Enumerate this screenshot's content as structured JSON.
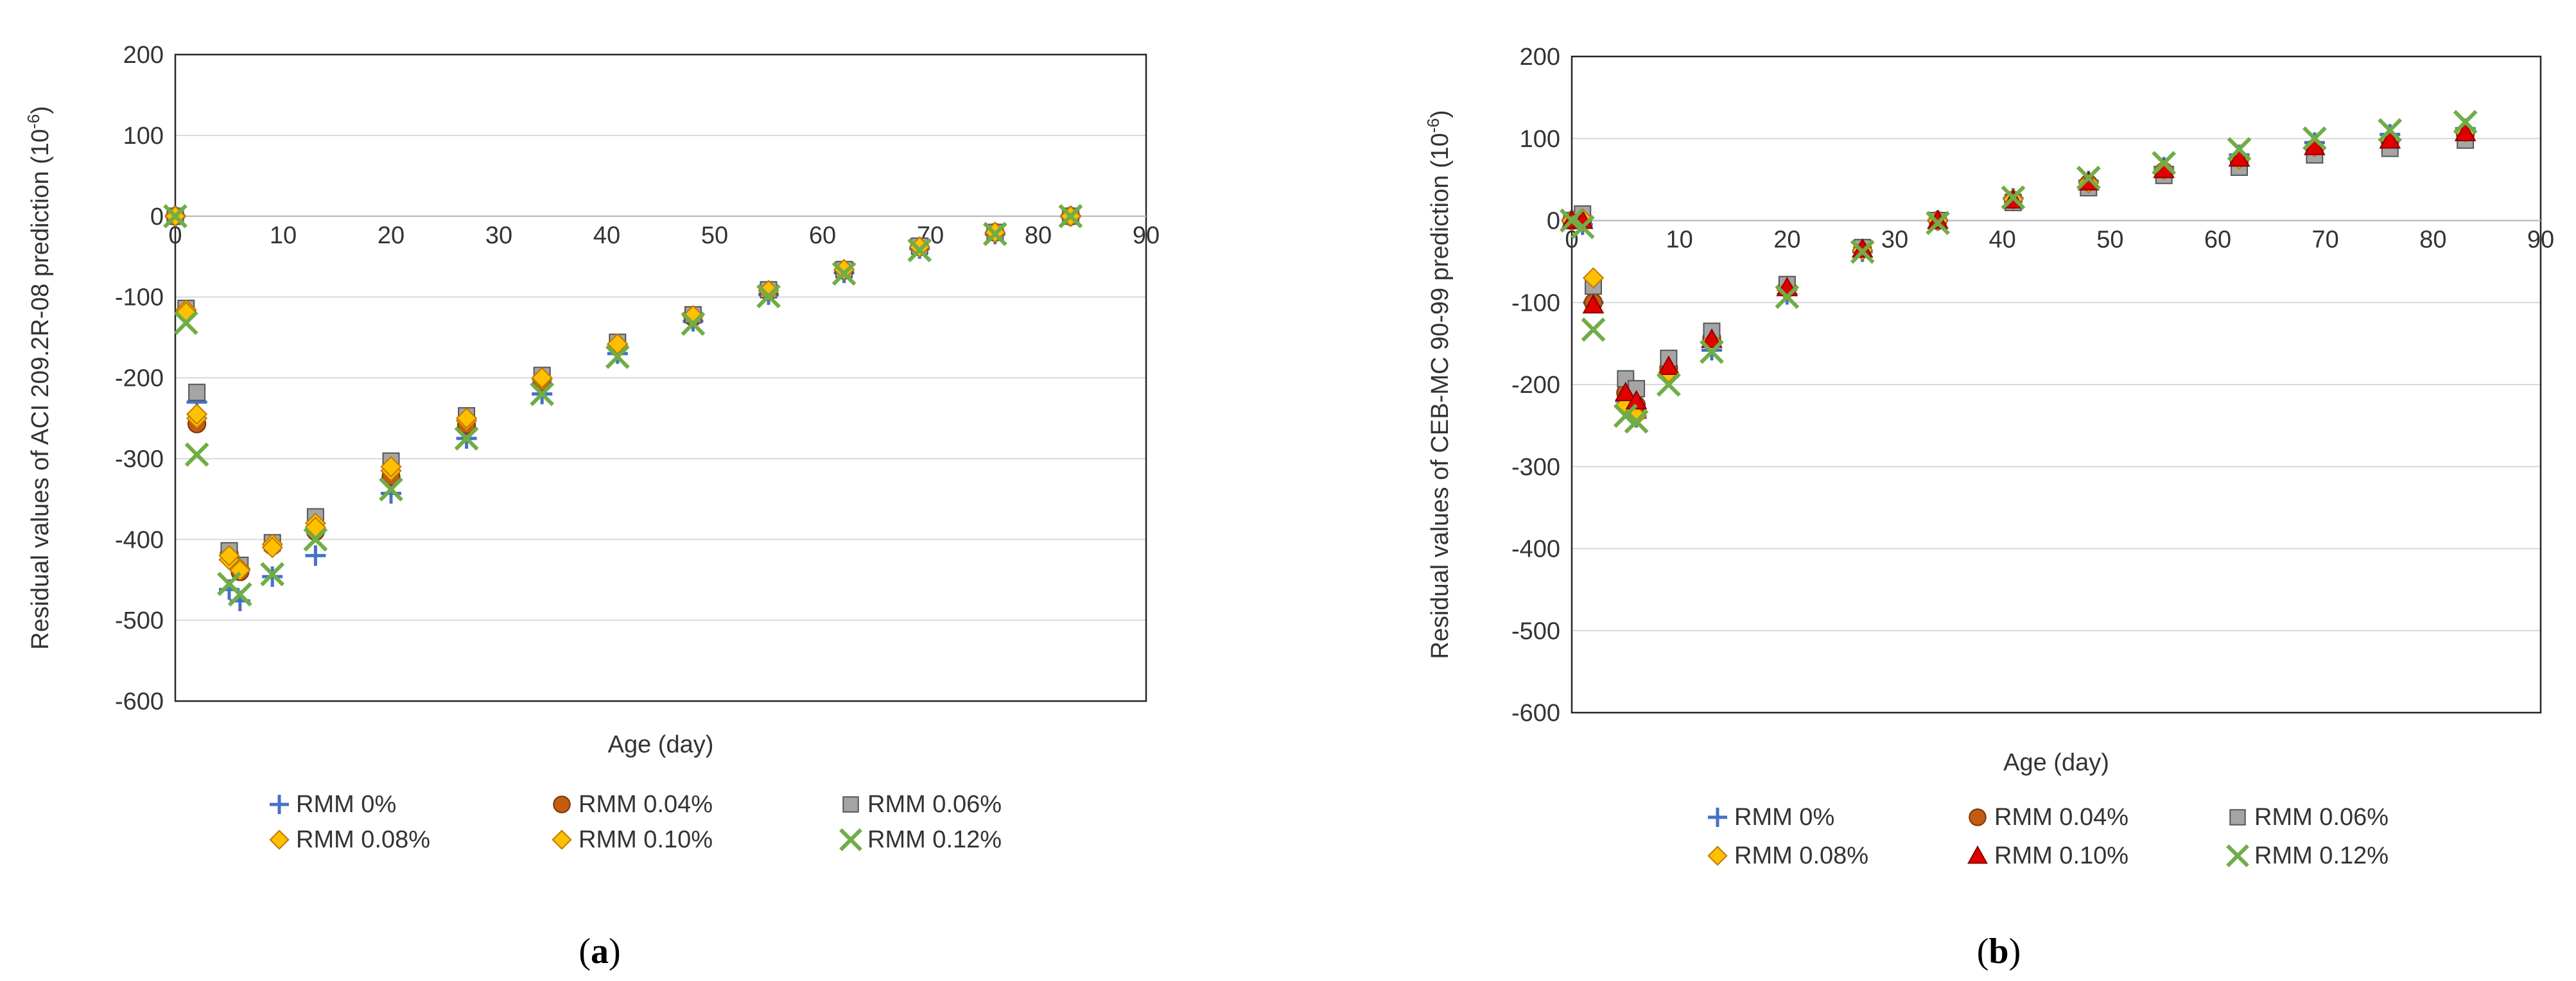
{
  "colors": {
    "RMM 0%": "#4472C4",
    "RMM 0.04%": "#C55A11",
    "RMM 0.06%": "#A5A5A5",
    "RMM 0.08%": "#FFC000",
    "RMM 0.10%": "#FFC000",
    "RMM 0.12%": "#70AD47",
    "red": "#E00000"
  },
  "chart_data": [
    {
      "type": "scatter",
      "caption_letter": "a",
      "xlabel": "Age (day)",
      "ylabel": "Residual values of ACI 209.2R-08  prediction (10",
      "ylabel_sup": "-6",
      "ylabel_end": ")",
      "xlim": [
        0,
        90
      ],
      "ylim": [
        -600,
        200
      ],
      "xticks": [
        0,
        10,
        20,
        30,
        40,
        50,
        60,
        70,
        80,
        90
      ],
      "yticks": [
        200,
        100,
        0,
        -100,
        -200,
        -300,
        -400,
        -500,
        -600
      ],
      "series": [
        {
          "name": "RMM 0%",
          "marker": "plus",
          "color": "#4472C4",
          "x": [
            0,
            1,
            2,
            5,
            6,
            9,
            13,
            20,
            27,
            34,
            41,
            48,
            55,
            62,
            69,
            76,
            83
          ],
          "y": [
            0,
            -118,
            -230,
            -462,
            -476,
            -446,
            -420,
            -343,
            -275,
            -220,
            -170,
            -130,
            -97,
            -70,
            -40,
            -22,
            0
          ]
        },
        {
          "name": "RMM 0.04%",
          "marker": "circle",
          "color": "#C55A11",
          "x": [
            0,
            1,
            2,
            5,
            6,
            9,
            13,
            20,
            27,
            34,
            41,
            48,
            55,
            62,
            69,
            76,
            83
          ],
          "y": [
            0,
            -117,
            -257,
            -418,
            -440,
            -408,
            -390,
            -322,
            -258,
            -205,
            -160,
            -125,
            -93,
            -67,
            -38,
            -20,
            0
          ]
        },
        {
          "name": "RMM 0.06%",
          "marker": "square",
          "color": "#A5A5A5",
          "x": [
            0,
            1,
            2,
            5,
            6,
            9,
            13,
            20,
            27,
            34,
            41,
            48,
            55,
            62,
            69,
            76,
            83
          ],
          "y": [
            0,
            -114,
            -218,
            -414,
            -432,
            -404,
            -372,
            -303,
            -247,
            -197,
            -156,
            -122,
            -91,
            -66,
            -37,
            -20,
            0
          ]
        },
        {
          "name": "RMM 0.08%",
          "marker": "diamond",
          "color": "#FFC000",
          "x": [
            0,
            1,
            2,
            5,
            6,
            9,
            13,
            20,
            27,
            34,
            41,
            48,
            55,
            62,
            69,
            76,
            83
          ],
          "y": [
            0,
            -116,
            -250,
            -425,
            -436,
            -406,
            -380,
            -315,
            -253,
            -202,
            -159,
            -124,
            -92,
            -66,
            -38,
            -20,
            0
          ]
        },
        {
          "name": "RMM 0.10%",
          "marker": "diamond",
          "color": "#FFC000",
          "x": [
            0,
            1,
            2,
            5,
            6,
            9,
            13,
            20,
            27,
            34,
            41,
            48,
            55,
            62,
            69,
            76,
            83
          ],
          "y": [
            0,
            -119,
            -245,
            -420,
            -438,
            -410,
            -385,
            -310,
            -250,
            -200,
            -158,
            -123,
            -92,
            -66,
            -38,
            -20,
            0
          ]
        },
        {
          "name": "RMM 0.12%",
          "marker": "x",
          "color": "#70AD47",
          "x": [
            0,
            1,
            2,
            5,
            6,
            9,
            13,
            20,
            27,
            34,
            41,
            48,
            55,
            62,
            69,
            76,
            83
          ],
          "y": [
            0,
            -132,
            -295,
            -455,
            -468,
            -443,
            -400,
            -338,
            -275,
            -220,
            -174,
            -133,
            -99,
            -71,
            -42,
            -22,
            0
          ]
        }
      ]
    },
    {
      "type": "scatter",
      "caption_letter": "b",
      "xlabel": "Age (day)",
      "ylabel": "Residual values of CEB-MC 90-99  prediction (10",
      "ylabel_sup": "-6",
      "ylabel_end": ")",
      "xlim": [
        0,
        90
      ],
      "ylim": [
        -600,
        200
      ],
      "xticks": [
        0,
        10,
        20,
        30,
        40,
        50,
        60,
        70,
        80,
        90
      ],
      "yticks": [
        200,
        100,
        0,
        -100,
        -200,
        -300,
        -400,
        -500,
        -600
      ],
      "series": [
        {
          "name": "RMM 0%",
          "marker": "plus",
          "color": "#4472C4",
          "x": [
            0,
            1,
            2,
            5,
            6,
            9,
            13,
            20,
            27,
            34,
            41,
            48,
            55,
            62,
            69,
            76,
            83
          ],
          "y": [
            0,
            -5,
            -100,
            -220,
            -240,
            -190,
            -158,
            -90,
            -38,
            0,
            27,
            48,
            65,
            80,
            95,
            105,
            112
          ]
        },
        {
          "name": "RMM 0.04%",
          "marker": "circle",
          "color": "#C55A11",
          "x": [
            0,
            1,
            2,
            5,
            6,
            9,
            13,
            20,
            27,
            34,
            41,
            48,
            55,
            62,
            69,
            76,
            83
          ],
          "y": [
            0,
            0,
            -100,
            -210,
            -225,
            -180,
            -143,
            -82,
            -35,
            0,
            25,
            45,
            60,
            72,
            88,
            97,
            105
          ]
        },
        {
          "name": "RMM 0.06%",
          "marker": "square",
          "color": "#A5A5A5",
          "x": [
            0,
            1,
            2,
            5,
            6,
            9,
            13,
            20,
            27,
            34,
            41,
            48,
            55,
            62,
            69,
            76,
            83
          ],
          "y": [
            0,
            8,
            -80,
            -193,
            -205,
            -168,
            -135,
            -78,
            -33,
            0,
            22,
            40,
            55,
            65,
            80,
            88,
            98
          ]
        },
        {
          "name": "RMM 0.08%",
          "marker": "diamond",
          "color": "#FFC000",
          "x": [
            0,
            1,
            2,
            5,
            6,
            9,
            13,
            20,
            27,
            34,
            41,
            48,
            55,
            62,
            69,
            76,
            83
          ],
          "y": [
            0,
            2,
            -70,
            -225,
            -238,
            -185,
            -148,
            -85,
            -36,
            0,
            26,
            46,
            62,
            75,
            90,
            100,
            108
          ]
        },
        {
          "name": "RMM 0.10%",
          "marker": "triangle",
          "color": "#E00000",
          "x": [
            0,
            1,
            2,
            5,
            6,
            9,
            13,
            20,
            27,
            34,
            41,
            48,
            55,
            62,
            69,
            76,
            83
          ],
          "y": [
            0,
            0,
            -103,
            -210,
            -220,
            -178,
            -145,
            -82,
            -35,
            0,
            25,
            47,
            62,
            76,
            90,
            98,
            107
          ]
        },
        {
          "name": "RMM 0.12%",
          "marker": "x",
          "color": "#70AD47",
          "x": [
            0,
            1,
            2,
            5,
            6,
            9,
            13,
            20,
            27,
            34,
            41,
            48,
            55,
            62,
            69,
            76,
            83
          ],
          "y": [
            0,
            -8,
            -133,
            -238,
            -245,
            -200,
            -160,
            -93,
            -38,
            -3,
            28,
            52,
            70,
            87,
            100,
            110,
            120
          ]
        }
      ]
    }
  ]
}
